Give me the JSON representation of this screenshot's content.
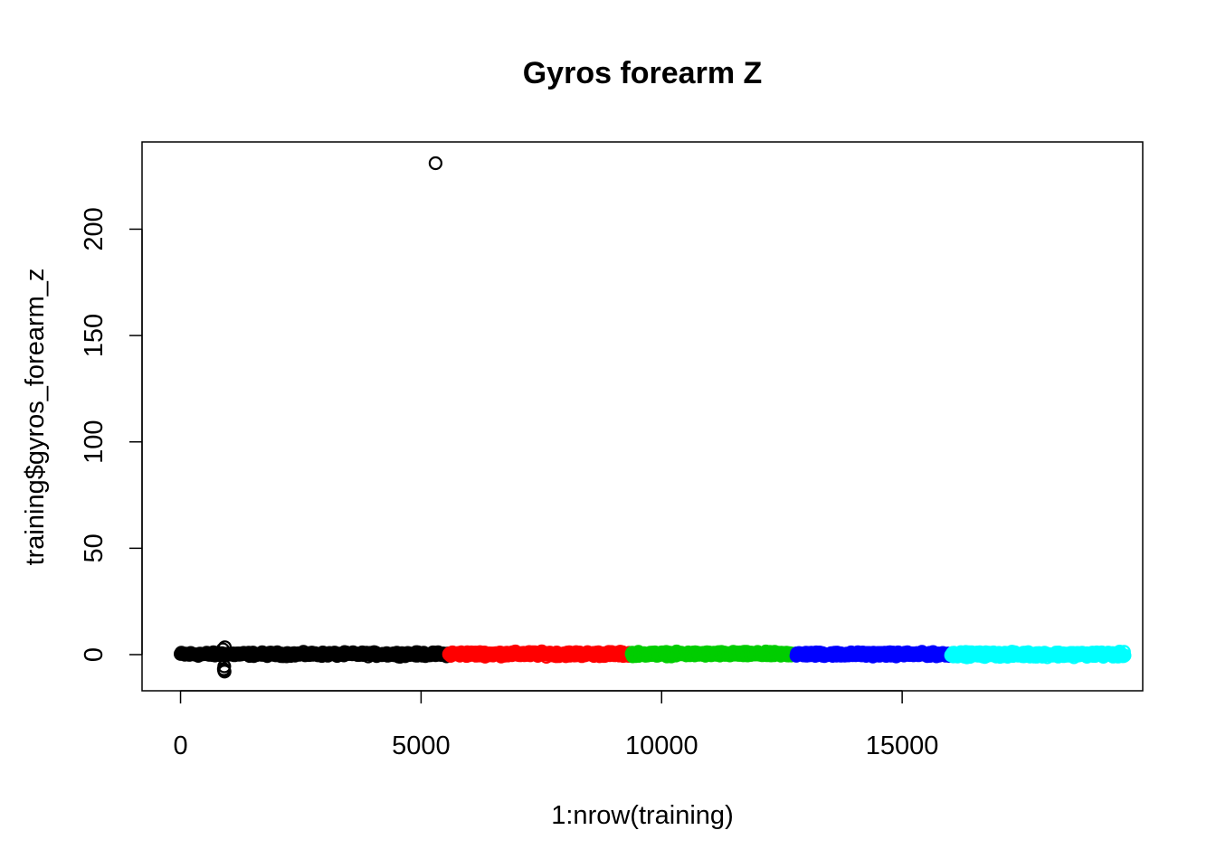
{
  "chart_data": {
    "type": "scatter",
    "title": "Gyros forearm Z",
    "xlabel": "1:nrow(training)",
    "ylabel": "training$gyros_forearm_z",
    "xlim": [
      -800,
      20000
    ],
    "ylim": [
      -17,
      241
    ],
    "x_ticks": [
      0,
      5000,
      10000,
      15000
    ],
    "y_ticks": [
      0,
      50,
      100,
      150,
      200
    ],
    "x_tick_labels": [
      "0",
      "5000",
      "10000",
      "15000"
    ],
    "y_tick_labels": [
      "0",
      "50",
      "100",
      "150",
      "200"
    ],
    "grid": false,
    "legend": null,
    "series": [
      {
        "x_range": [
          1,
          5580
        ],
        "center": 0.2,
        "spread": 1.3,
        "color": "#000000",
        "extras": [
          [
            900,
            -6.8
          ],
          [
            905,
            -7.5
          ],
          [
            910,
            -5.5
          ],
          [
            880,
            2.5
          ],
          [
            920,
            3.5
          ],
          [
            915,
            -8.0
          ],
          [
            5300,
            231
          ]
        ]
      },
      {
        "x_range": [
          5581,
          9377
        ],
        "center": 0.3,
        "spread": 1.5,
        "color": "#ff0000",
        "extras": []
      },
      {
        "x_range": [
          9378,
          12799
        ],
        "center": 0.3,
        "spread": 1.4,
        "color": "#00cd00",
        "extras": []
      },
      {
        "x_range": [
          12800,
          16015
        ],
        "center": 0.2,
        "spread": 1.3,
        "color": "#0000ff",
        "extras": []
      },
      {
        "x_range": [
          16016,
          19622
        ],
        "center": 0.1,
        "spread": 1.6,
        "color": "#00ffff",
        "extras": []
      }
    ]
  }
}
